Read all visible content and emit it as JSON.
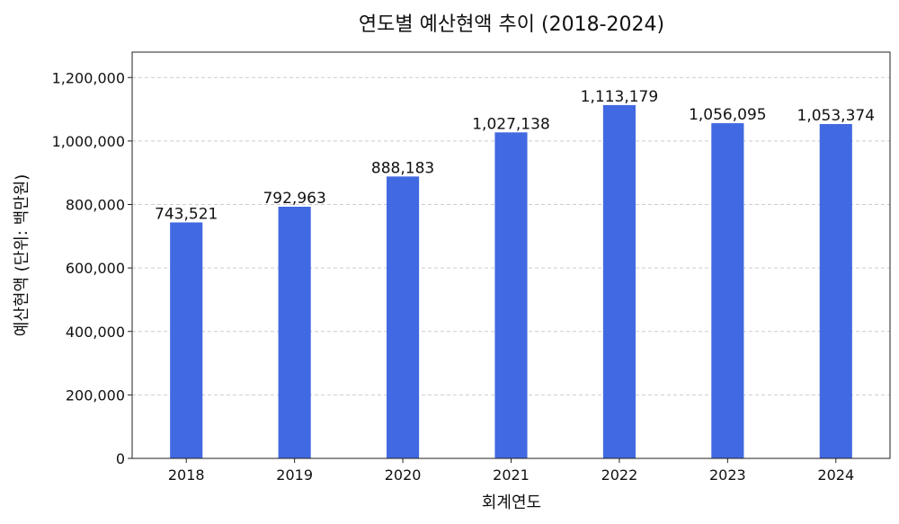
{
  "chart_data": {
    "type": "bar",
    "title": "연도별 예산현액 추이 (2018-2024)",
    "xlabel": "회계연도",
    "ylabel": "예산현액 (단위: 백만원)",
    "categories": [
      "2018",
      "2019",
      "2020",
      "2021",
      "2022",
      "2023",
      "2024"
    ],
    "values": [
      743521,
      792963,
      888183,
      1027138,
      1113179,
      1056095,
      1053374
    ],
    "data_labels": [
      "743,521",
      "792,963",
      "888,183",
      "1,027,138",
      "1,113,179",
      "1,056,095",
      "1,053,374"
    ],
    "ylim": [
      0,
      1280000
    ],
    "yticks": [
      0,
      200000,
      400000,
      600000,
      800000,
      1000000,
      1200000
    ],
    "ytick_labels": [
      "0",
      "200,000",
      "400,000",
      "600,000",
      "800,000",
      "1,000,000",
      "1,200,000"
    ],
    "grid": true,
    "bar_color": "#4169E1"
  }
}
